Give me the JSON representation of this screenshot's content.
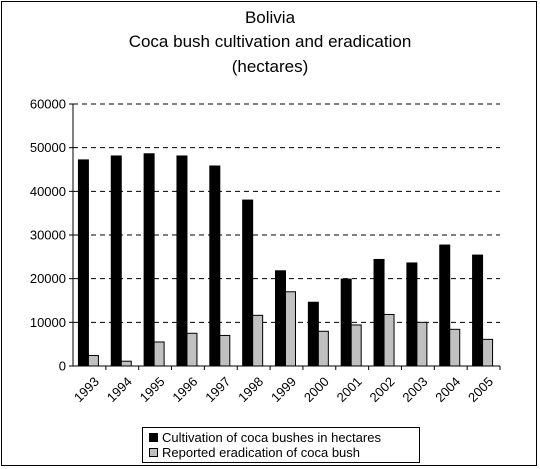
{
  "chart_data": {
    "type": "bar",
    "title": [
      "Bolivia",
      "Coca bush cultivation and eradication",
      "(hectares)"
    ],
    "categories": [
      "1993",
      "1994",
      "1995",
      "1996",
      "1997",
      "1998",
      "1999",
      "2000",
      "2001",
      "2002",
      "2003",
      "2004",
      "2005"
    ],
    "series": [
      {
        "name": "Cultivation of coca bushes in hectares",
        "color": "#000000",
        "values": [
          47200,
          48100,
          48600,
          48100,
          45800,
          38000,
          21800,
          14600,
          19900,
          24400,
          23600,
          27700,
          25400
        ]
      },
      {
        "name": "Reported eradication of coca bush",
        "color": "#c0c0c0",
        "values": [
          2400,
          1100,
          5500,
          7500,
          7000,
          11600,
          16999,
          7953,
          9400,
          11800,
          10000,
          8400,
          6100
        ]
      }
    ],
    "ylim": [
      0,
      60000
    ],
    "yticks": [
      0,
      10000,
      20000,
      30000,
      40000,
      50000,
      60000
    ],
    "grid": "horizontal dashed",
    "legend_position": "bottom"
  }
}
